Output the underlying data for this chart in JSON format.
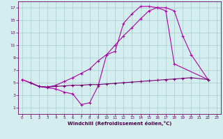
{
  "line1_x": [
    0,
    1,
    2,
    3,
    4,
    5,
    6,
    7,
    8,
    9,
    10,
    11,
    12,
    13,
    14,
    15,
    16,
    17,
    18,
    22
  ],
  "line1_y": [
    5.5,
    5.0,
    4.4,
    4.2,
    4.0,
    3.5,
    3.2,
    1.5,
    1.8,
    4.5,
    9.5,
    10.0,
    14.5,
    16.0,
    17.2,
    17.2,
    17.0,
    16.5,
    8.0,
    5.5
  ],
  "line2_x": [
    0,
    2,
    3,
    4,
    5,
    6,
    7,
    8,
    9,
    10,
    11,
    12,
    13,
    14,
    15,
    16,
    17,
    18,
    19,
    20,
    22
  ],
  "line2_y": [
    5.5,
    4.4,
    4.3,
    4.6,
    5.2,
    5.8,
    6.5,
    7.2,
    8.5,
    9.5,
    11.0,
    12.5,
    13.8,
    15.2,
    16.5,
    17.0,
    17.0,
    16.5,
    12.5,
    9.5,
    5.5
  ],
  "line3_x": [
    1,
    2,
    3,
    4,
    5,
    6,
    7,
    8,
    9,
    10,
    11,
    12,
    13,
    14,
    15,
    16,
    17,
    18,
    19,
    20,
    22
  ],
  "line3_y": [
    5.0,
    4.4,
    4.3,
    4.4,
    4.5,
    4.6,
    4.6,
    4.7,
    4.7,
    4.8,
    4.9,
    5.0,
    5.1,
    5.2,
    5.3,
    5.4,
    5.5,
    5.6,
    5.7,
    5.8,
    5.5
  ],
  "xlim": [
    -0.5,
    23.5
  ],
  "ylim": [
    0,
    18
  ],
  "xticks": [
    0,
    1,
    2,
    3,
    4,
    5,
    6,
    7,
    8,
    9,
    10,
    11,
    12,
    13,
    14,
    15,
    16,
    17,
    18,
    19,
    20,
    21,
    22,
    23
  ],
  "yticks": [
    1,
    3,
    5,
    7,
    9,
    11,
    13,
    15,
    17
  ],
  "xlabel": "Windchill (Refroidissement éolien,°C)",
  "bg_color": "#d4eef0",
  "grid_color": "#a8cccc",
  "line_color": "#aa00aa",
  "line3_color": "#770077",
  "tick_color": "#660066",
  "label_color": "#440044"
}
